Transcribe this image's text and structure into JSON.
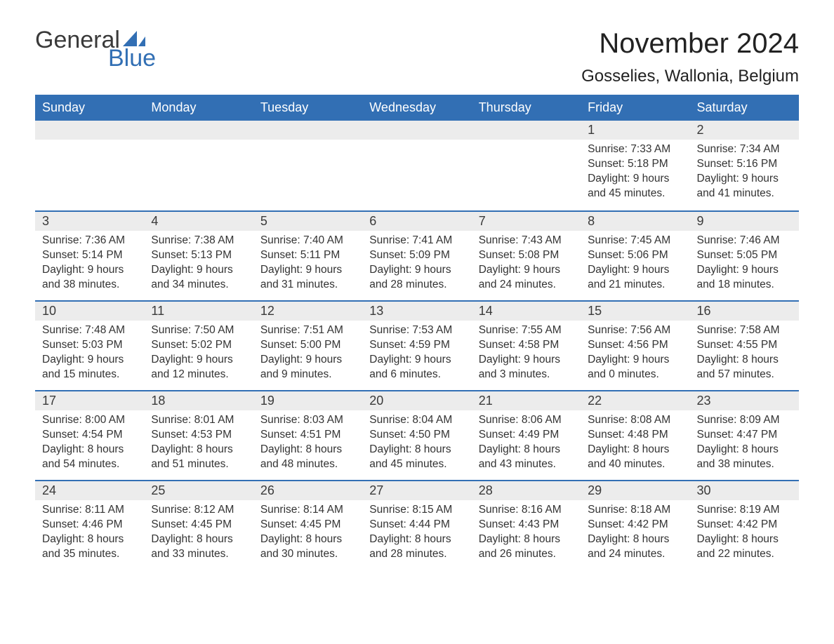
{
  "brand": {
    "general": "General",
    "blue": "Blue"
  },
  "title": "November 2024",
  "location": "Gosselies, Wallonia, Belgium",
  "colors": {
    "header_bg": "#326fb4",
    "header_text": "#ffffff",
    "daynum_bg": "#ececec",
    "body_text": "#333333",
    "rule": "#326fb4",
    "page_bg": "#ffffff",
    "logo_blue": "#326fb4",
    "logo_gray": "#3a3a3a"
  },
  "typography": {
    "title_fontsize_pt": 30,
    "location_fontsize_pt": 18,
    "header_fontsize_pt": 14,
    "body_fontsize_pt": 12,
    "font_family": "Arial"
  },
  "day_names": [
    "Sunday",
    "Monday",
    "Tuesday",
    "Wednesday",
    "Thursday",
    "Friday",
    "Saturday"
  ],
  "weeks": [
    [
      null,
      null,
      null,
      null,
      null,
      {
        "n": "1",
        "sunrise": "7:33 AM",
        "sunset": "5:18 PM",
        "daylight": "9 hours and 45 minutes."
      },
      {
        "n": "2",
        "sunrise": "7:34 AM",
        "sunset": "5:16 PM",
        "daylight": "9 hours and 41 minutes."
      }
    ],
    [
      {
        "n": "3",
        "sunrise": "7:36 AM",
        "sunset": "5:14 PM",
        "daylight": "9 hours and 38 minutes."
      },
      {
        "n": "4",
        "sunrise": "7:38 AM",
        "sunset": "5:13 PM",
        "daylight": "9 hours and 34 minutes."
      },
      {
        "n": "5",
        "sunrise": "7:40 AM",
        "sunset": "5:11 PM",
        "daylight": "9 hours and 31 minutes."
      },
      {
        "n": "6",
        "sunrise": "7:41 AM",
        "sunset": "5:09 PM",
        "daylight": "9 hours and 28 minutes."
      },
      {
        "n": "7",
        "sunrise": "7:43 AM",
        "sunset": "5:08 PM",
        "daylight": "9 hours and 24 minutes."
      },
      {
        "n": "8",
        "sunrise": "7:45 AM",
        "sunset": "5:06 PM",
        "daylight": "9 hours and 21 minutes."
      },
      {
        "n": "9",
        "sunrise": "7:46 AM",
        "sunset": "5:05 PM",
        "daylight": "9 hours and 18 minutes."
      }
    ],
    [
      {
        "n": "10",
        "sunrise": "7:48 AM",
        "sunset": "5:03 PM",
        "daylight": "9 hours and 15 minutes."
      },
      {
        "n": "11",
        "sunrise": "7:50 AM",
        "sunset": "5:02 PM",
        "daylight": "9 hours and 12 minutes."
      },
      {
        "n": "12",
        "sunrise": "7:51 AM",
        "sunset": "5:00 PM",
        "daylight": "9 hours and 9 minutes."
      },
      {
        "n": "13",
        "sunrise": "7:53 AM",
        "sunset": "4:59 PM",
        "daylight": "9 hours and 6 minutes."
      },
      {
        "n": "14",
        "sunrise": "7:55 AM",
        "sunset": "4:58 PM",
        "daylight": "9 hours and 3 minutes."
      },
      {
        "n": "15",
        "sunrise": "7:56 AM",
        "sunset": "4:56 PM",
        "daylight": "9 hours and 0 minutes."
      },
      {
        "n": "16",
        "sunrise": "7:58 AM",
        "sunset": "4:55 PM",
        "daylight": "8 hours and 57 minutes."
      }
    ],
    [
      {
        "n": "17",
        "sunrise": "8:00 AM",
        "sunset": "4:54 PM",
        "daylight": "8 hours and 54 minutes."
      },
      {
        "n": "18",
        "sunrise": "8:01 AM",
        "sunset": "4:53 PM",
        "daylight": "8 hours and 51 minutes."
      },
      {
        "n": "19",
        "sunrise": "8:03 AM",
        "sunset": "4:51 PM",
        "daylight": "8 hours and 48 minutes."
      },
      {
        "n": "20",
        "sunrise": "8:04 AM",
        "sunset": "4:50 PM",
        "daylight": "8 hours and 45 minutes."
      },
      {
        "n": "21",
        "sunrise": "8:06 AM",
        "sunset": "4:49 PM",
        "daylight": "8 hours and 43 minutes."
      },
      {
        "n": "22",
        "sunrise": "8:08 AM",
        "sunset": "4:48 PM",
        "daylight": "8 hours and 40 minutes."
      },
      {
        "n": "23",
        "sunrise": "8:09 AM",
        "sunset": "4:47 PM",
        "daylight": "8 hours and 38 minutes."
      }
    ],
    [
      {
        "n": "24",
        "sunrise": "8:11 AM",
        "sunset": "4:46 PM",
        "daylight": "8 hours and 35 minutes."
      },
      {
        "n": "25",
        "sunrise": "8:12 AM",
        "sunset": "4:45 PM",
        "daylight": "8 hours and 33 minutes."
      },
      {
        "n": "26",
        "sunrise": "8:14 AM",
        "sunset": "4:45 PM",
        "daylight": "8 hours and 30 minutes."
      },
      {
        "n": "27",
        "sunrise": "8:15 AM",
        "sunset": "4:44 PM",
        "daylight": "8 hours and 28 minutes."
      },
      {
        "n": "28",
        "sunrise": "8:16 AM",
        "sunset": "4:43 PM",
        "daylight": "8 hours and 26 minutes."
      },
      {
        "n": "29",
        "sunrise": "8:18 AM",
        "sunset": "4:42 PM",
        "daylight": "8 hours and 24 minutes."
      },
      {
        "n": "30",
        "sunrise": "8:19 AM",
        "sunset": "4:42 PM",
        "daylight": "8 hours and 22 minutes."
      }
    ]
  ],
  "labels": {
    "sunrise": "Sunrise:",
    "sunset": "Sunset:",
    "daylight": "Daylight:"
  }
}
